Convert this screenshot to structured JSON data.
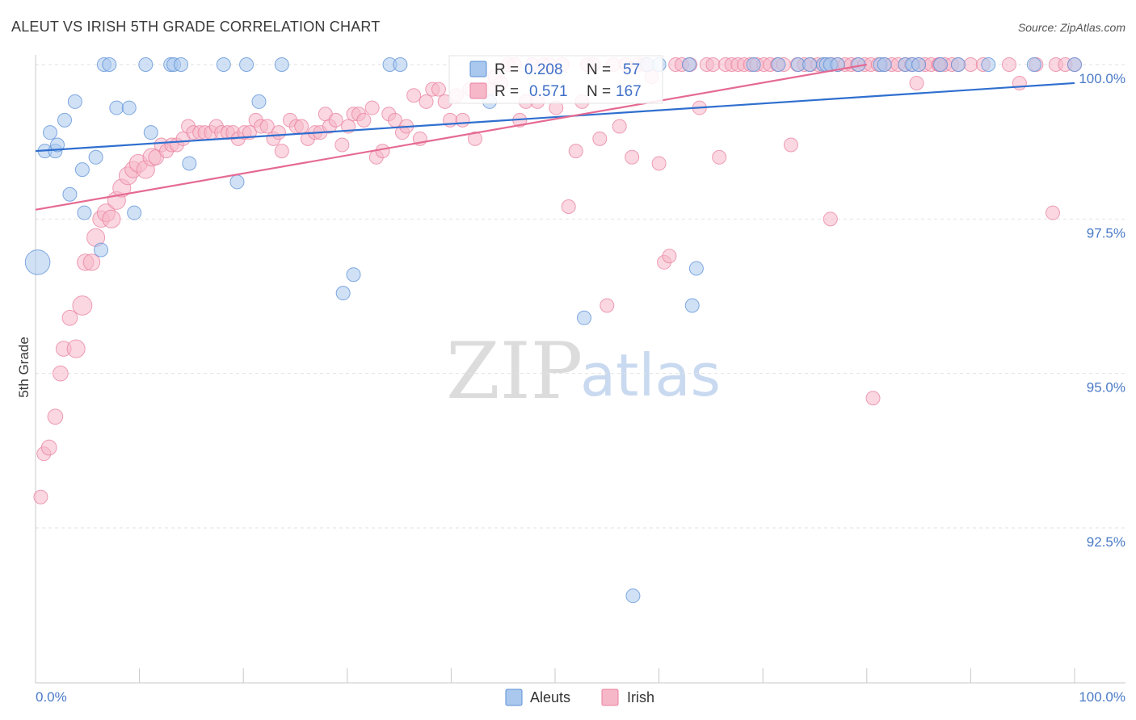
{
  "header": {
    "title": "ALEUT VS IRISH 5TH GRADE CORRELATION CHART",
    "source": "Source: ZipAtlas.com"
  },
  "watermark": {
    "zip": "ZIP",
    "atlas": "atlas"
  },
  "legend_top": {
    "rows": [
      {
        "r_label": "R = ",
        "r_value": "0.208",
        "n_label": "N = ",
        "n_value": "57",
        "color": "#aac8ee"
      },
      {
        "r_label": "R = ",
        "r_value": "0.571",
        "n_label": "N = ",
        "n_value": "167",
        "color": "#f6b7c9"
      }
    ]
  },
  "legend_bottom": {
    "items": [
      {
        "label": "Aleuts",
        "color": "#aac8ee"
      },
      {
        "label": "Irish",
        "color": "#f6b7c9"
      }
    ]
  },
  "chart_data": {
    "type": "scatter",
    "title": "ALEUT VS IRISH 5TH GRADE CORRELATION CHART",
    "xlabel": "",
    "ylabel": "5th Grade",
    "xlim": [
      0,
      100
    ],
    "ylim": [
      90.2,
      100.4
    ],
    "x_tick_labels": [
      "0.0%",
      "100.0%"
    ],
    "y_ticks": [
      {
        "value": 100.0,
        "label": "100.0%"
      },
      {
        "value": 97.5,
        "label": "97.5%"
      },
      {
        "value": 95.0,
        "label": "95.0%"
      },
      {
        "value": 92.5,
        "label": "92.5%"
      }
    ],
    "grid": true,
    "legend": "top-center",
    "colors": {
      "aleuts_fill": "#aac8ee",
      "aleuts_stroke": "#5b8fd6",
      "aleuts_line": "#2f6fcf",
      "irish_fill": "#f6b7c9",
      "irish_stroke": "#e8809e",
      "irish_line": "#e56a92"
    },
    "series": [
      {
        "name": "Aleuts",
        "points": [
          [
            0.2,
            96.8,
            1.8
          ],
          [
            0.9,
            98.6,
            1
          ],
          [
            1.4,
            98.9,
            1
          ],
          [
            1.9,
            98.6,
            1
          ],
          [
            2.1,
            98.7,
            1
          ],
          [
            2.8,
            99.1,
            1
          ],
          [
            3.3,
            97.9,
            1
          ],
          [
            3.8,
            99.4,
            1
          ],
          [
            4.5,
            98.3,
            1
          ],
          [
            4.7,
            97.6,
            1
          ],
          [
            5.8,
            98.5,
            1
          ],
          [
            6.3,
            97.0,
            1
          ],
          [
            6.6,
            100.0,
            1
          ],
          [
            7.1,
            100.0,
            1
          ],
          [
            7.8,
            99.3,
            1
          ],
          [
            9.0,
            99.3,
            1
          ],
          [
            9.5,
            97.6,
            1
          ],
          [
            10.6,
            100.0,
            1
          ],
          [
            11.1,
            98.9,
            1
          ],
          [
            13.0,
            100.0,
            1
          ],
          [
            13.3,
            100.0,
            1
          ],
          [
            14.0,
            100.0,
            1
          ],
          [
            14.8,
            98.4,
            1
          ],
          [
            18.1,
            100.0,
            1
          ],
          [
            19.4,
            98.1,
            1
          ],
          [
            20.3,
            100.0,
            1
          ],
          [
            21.5,
            99.4,
            1
          ],
          [
            23.7,
            100.0,
            1
          ],
          [
            29.6,
            96.3,
            1
          ],
          [
            30.6,
            96.6,
            1
          ],
          [
            34.1,
            100.0,
            1
          ],
          [
            35.1,
            100.0,
            1
          ],
          [
            43.7,
            99.4,
            1
          ],
          [
            52.8,
            95.9,
            1
          ],
          [
            57.5,
            91.4,
            1
          ],
          [
            58.9,
            100.0,
            1
          ],
          [
            60.0,
            100.0,
            1
          ],
          [
            62.9,
            100.0,
            1
          ],
          [
            63.2,
            96.1,
            1
          ],
          [
            63.6,
            96.7,
            1
          ],
          [
            69.1,
            100.0,
            1
          ],
          [
            71.5,
            100.0,
            1
          ],
          [
            73.4,
            100.0,
            1
          ],
          [
            74.5,
            100.0,
            1
          ],
          [
            75.8,
            100.0,
            1
          ],
          [
            76.1,
            100.0,
            1
          ],
          [
            76.5,
            100.0,
            1
          ],
          [
            77.2,
            100.0,
            1
          ],
          [
            79.2,
            100.0,
            1
          ],
          [
            81.3,
            100.0,
            1
          ],
          [
            81.7,
            100.0,
            1
          ],
          [
            83.7,
            100.0,
            1
          ],
          [
            84.4,
            100.0,
            1
          ],
          [
            85.0,
            100.0,
            1
          ],
          [
            87.1,
            100.0,
            1
          ],
          [
            88.8,
            100.0,
            1
          ],
          [
            91.7,
            100.0,
            1
          ],
          [
            96.1,
            100.0,
            1
          ],
          [
            100.0,
            100.0,
            1
          ]
        ],
        "trend": {
          "x": [
            0,
            100
          ],
          "y": [
            98.6,
            99.7
          ]
        }
      },
      {
        "name": "Irish",
        "points": [
          [
            0.5,
            93.0,
            1
          ],
          [
            0.8,
            93.7,
            1
          ],
          [
            1.3,
            93.8,
            1.1
          ],
          [
            1.9,
            94.3,
            1.1
          ],
          [
            2.4,
            95.0,
            1.1
          ],
          [
            2.7,
            95.4,
            1.1
          ],
          [
            3.3,
            95.9,
            1.1
          ],
          [
            3.9,
            95.4,
            1.3
          ],
          [
            4.5,
            96.1,
            1.4
          ],
          [
            4.8,
            96.8,
            1.2
          ],
          [
            5.4,
            96.8,
            1.2
          ],
          [
            5.8,
            97.2,
            1.3
          ],
          [
            6.3,
            97.5,
            1.2
          ],
          [
            6.8,
            97.6,
            1.3
          ],
          [
            7.3,
            97.5,
            1.3
          ],
          [
            7.8,
            97.8,
            1.3
          ],
          [
            8.3,
            98.0,
            1.3
          ],
          [
            8.9,
            98.2,
            1.3
          ],
          [
            9.4,
            98.3,
            1.2
          ],
          [
            9.9,
            98.4,
            1.3
          ],
          [
            10.6,
            98.3,
            1.3
          ],
          [
            11.2,
            98.5,
            1.3
          ],
          [
            11.6,
            98.5,
            1.1
          ],
          [
            12.1,
            98.7,
            1
          ],
          [
            12.6,
            98.6,
            1
          ],
          [
            13.1,
            98.7,
            1
          ],
          [
            13.6,
            98.7,
            1
          ],
          [
            14.2,
            98.8,
            1
          ],
          [
            14.7,
            99.0,
            1
          ],
          [
            15.2,
            98.9,
            1
          ],
          [
            15.8,
            98.9,
            1
          ],
          [
            16.3,
            98.9,
            1
          ],
          [
            16.9,
            98.9,
            1
          ],
          [
            17.4,
            99.0,
            1
          ],
          [
            17.9,
            98.9,
            1
          ],
          [
            18.5,
            98.9,
            1
          ],
          [
            19.0,
            98.9,
            1
          ],
          [
            19.5,
            98.8,
            1
          ],
          [
            20.1,
            98.9,
            1
          ],
          [
            20.6,
            98.9,
            1
          ],
          [
            21.2,
            99.1,
            1
          ],
          [
            21.7,
            99.0,
            1
          ],
          [
            22.3,
            99.0,
            1
          ],
          [
            22.9,
            98.8,
            1
          ],
          [
            23.4,
            98.9,
            1
          ],
          [
            23.7,
            98.6,
            1
          ],
          [
            24.5,
            99.1,
            1
          ],
          [
            25.1,
            99.0,
            1
          ],
          [
            25.6,
            99.0,
            1
          ],
          [
            26.2,
            98.8,
            1
          ],
          [
            26.9,
            98.9,
            1
          ],
          [
            27.4,
            98.9,
            1
          ],
          [
            27.9,
            99.2,
            1
          ],
          [
            28.3,
            99.0,
            1
          ],
          [
            28.9,
            99.1,
            1
          ],
          [
            29.5,
            98.7,
            1
          ],
          [
            30.1,
            99.0,
            1
          ],
          [
            30.6,
            99.2,
            1
          ],
          [
            31.1,
            99.2,
            1
          ],
          [
            31.6,
            99.1,
            1
          ],
          [
            32.4,
            99.3,
            1
          ],
          [
            32.8,
            98.5,
            1
          ],
          [
            33.4,
            98.6,
            1
          ],
          [
            34.0,
            99.2,
            1
          ],
          [
            34.6,
            99.1,
            1
          ],
          [
            35.3,
            98.9,
            1
          ],
          [
            35.7,
            99.0,
            1
          ],
          [
            36.4,
            99.5,
            1
          ],
          [
            37.0,
            98.8,
            1
          ],
          [
            37.6,
            99.4,
            1
          ],
          [
            38.2,
            99.6,
            1
          ],
          [
            38.8,
            99.6,
            1
          ],
          [
            39.4,
            99.4,
            1
          ],
          [
            39.9,
            99.1,
            1
          ],
          [
            40.5,
            99.5,
            1
          ],
          [
            41.1,
            99.1,
            1
          ],
          [
            41.8,
            99.6,
            1
          ],
          [
            42.3,
            98.8,
            1
          ],
          [
            42.9,
            99.6,
            1
          ],
          [
            43.6,
            99.6,
            1
          ],
          [
            44.2,
            99.8,
            1
          ],
          [
            44.8,
            99.7,
            1
          ],
          [
            45.5,
            100.0,
            1
          ],
          [
            46.1,
            100.0,
            1
          ],
          [
            46.6,
            99.1,
            1
          ],
          [
            47.2,
            99.4,
            1
          ],
          [
            47.8,
            100.0,
            1
          ],
          [
            48.3,
            99.4,
            1
          ],
          [
            48.9,
            100.0,
            1
          ],
          [
            49.5,
            100.0,
            1
          ],
          [
            50.1,
            99.3,
            1
          ],
          [
            50.7,
            100.0,
            1
          ],
          [
            51.3,
            97.7,
            1
          ],
          [
            52.0,
            98.6,
            1
          ],
          [
            52.6,
            99.4,
            1
          ],
          [
            53.1,
            100.0,
            1
          ],
          [
            53.7,
            100.0,
            1
          ],
          [
            54.3,
            98.8,
            1
          ],
          [
            55.0,
            96.1,
            1
          ],
          [
            55.6,
            100.0,
            1
          ],
          [
            56.2,
            99.0,
            1
          ],
          [
            56.8,
            100.0,
            1
          ],
          [
            57.4,
            98.5,
            1
          ],
          [
            58.0,
            100.0,
            1
          ],
          [
            58.6,
            100.0,
            1
          ],
          [
            59.3,
            99.8,
            1
          ],
          [
            60.0,
            98.4,
            1
          ],
          [
            60.5,
            96.8,
            1
          ],
          [
            61.0,
            96.9,
            1
          ],
          [
            61.6,
            100.0,
            1
          ],
          [
            62.2,
            100.0,
            1
          ],
          [
            63.0,
            100.0,
            1
          ],
          [
            63.9,
            99.3,
            1
          ],
          [
            64.6,
            100.0,
            1
          ],
          [
            65.2,
            100.0,
            1
          ],
          [
            65.8,
            98.5,
            1
          ],
          [
            66.4,
            100.0,
            1
          ],
          [
            67.0,
            100.0,
            1
          ],
          [
            67.6,
            100.0,
            1
          ],
          [
            68.2,
            100.0,
            1
          ],
          [
            68.8,
            100.0,
            1
          ],
          [
            69.4,
            100.0,
            1
          ],
          [
            70.1,
            100.0,
            1
          ],
          [
            70.7,
            100.0,
            1
          ],
          [
            71.4,
            100.0,
            1
          ],
          [
            72.0,
            100.0,
            1
          ],
          [
            72.7,
            98.7,
            1
          ],
          [
            73.3,
            100.0,
            1
          ],
          [
            74.0,
            100.0,
            1
          ],
          [
            74.6,
            100.0,
            1
          ],
          [
            75.3,
            100.0,
            1
          ],
          [
            75.9,
            100.0,
            1
          ],
          [
            76.6,
            100.0,
            1
          ],
          [
            77.2,
            100.0,
            1
          ],
          [
            77.9,
            100.0,
            1
          ],
          [
            78.5,
            100.0,
            1
          ],
          [
            79.1,
            100.0,
            1
          ],
          [
            79.8,
            100.0,
            1
          ],
          [
            80.4,
            100.0,
            1
          ],
          [
            81.1,
            100.0,
            1
          ],
          [
            81.7,
            100.0,
            1
          ],
          [
            82.4,
            100.0,
            1
          ],
          [
            83.0,
            100.0,
            1
          ],
          [
            83.7,
            100.0,
            1
          ],
          [
            84.3,
            100.0,
            1
          ],
          [
            85.0,
            100.0,
            1
          ],
          [
            85.6,
            100.0,
            1
          ],
          [
            86.2,
            100.0,
            1
          ],
          [
            86.9,
            100.0,
            1
          ],
          [
            87.5,
            100.0,
            1
          ],
          [
            88.2,
            100.0,
            1
          ],
          [
            88.8,
            100.0,
            1
          ],
          [
            90.0,
            100.0,
            1
          ],
          [
            91.2,
            100.0,
            1
          ],
          [
            93.7,
            100.0,
            1
          ],
          [
            94.7,
            99.7,
            1
          ],
          [
            96.3,
            100.0,
            1
          ],
          [
            98.2,
            100.0,
            1
          ],
          [
            99.1,
            100.0,
            1
          ],
          [
            76.5,
            97.5,
            1
          ],
          [
            80.6,
            94.6,
            1
          ],
          [
            84.8,
            99.7,
            1
          ],
          [
            87.0,
            100.0,
            1
          ],
          [
            97.9,
            97.6,
            1
          ],
          [
            100.0,
            100.0,
            1
          ]
        ],
        "trend": {
          "x": [
            0,
            80
          ],
          "y": [
            97.65,
            100.0
          ]
        }
      }
    ]
  }
}
